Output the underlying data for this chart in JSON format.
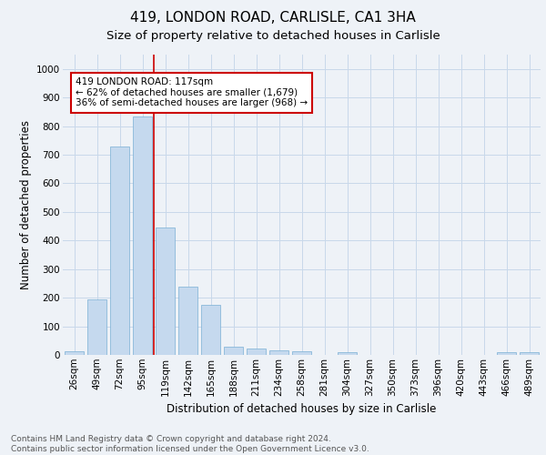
{
  "title_line1": "419, LONDON ROAD, CARLISLE, CA1 3HA",
  "title_line2": "Size of property relative to detached houses in Carlisle",
  "xlabel": "Distribution of detached houses by size in Carlisle",
  "ylabel": "Number of detached properties",
  "categories": [
    "26sqm",
    "49sqm",
    "72sqm",
    "95sqm",
    "119sqm",
    "142sqm",
    "165sqm",
    "188sqm",
    "211sqm",
    "234sqm",
    "258sqm",
    "281sqm",
    "304sqm",
    "327sqm",
    "350sqm",
    "373sqm",
    "396sqm",
    "420sqm",
    "443sqm",
    "466sqm",
    "489sqm"
  ],
  "values": [
    14,
    193,
    730,
    833,
    447,
    240,
    175,
    30,
    21,
    17,
    13,
    0,
    8,
    0,
    0,
    0,
    0,
    0,
    0,
    9,
    8
  ],
  "bar_color": "#c5d9ee",
  "bar_edge_color": "#7aafd4",
  "vline_color": "#cc0000",
  "annotation_text": "419 LONDON ROAD: 117sqm\n← 62% of detached houses are smaller (1,679)\n36% of semi-detached houses are larger (968) →",
  "annotation_box_color": "#ffffff",
  "annotation_box_edge_color": "#cc0000",
  "ylim": [
    0,
    1050
  ],
  "yticks": [
    0,
    100,
    200,
    300,
    400,
    500,
    600,
    700,
    800,
    900,
    1000
  ],
  "grid_color": "#c8d8ea",
  "bg_color": "#eef2f7",
  "footer_text": "Contains HM Land Registry data © Crown copyright and database right 2024.\nContains public sector information licensed under the Open Government Licence v3.0.",
  "title1_fontsize": 11,
  "title2_fontsize": 9.5,
  "xlabel_fontsize": 8.5,
  "ylabel_fontsize": 8.5,
  "tick_fontsize": 7.5,
  "footer_fontsize": 6.5,
  "vline_index": 4
}
